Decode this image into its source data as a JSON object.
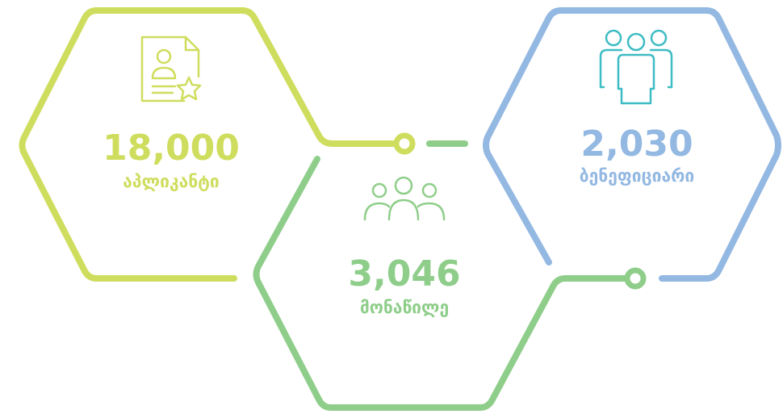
{
  "items": [
    {
      "value": "18,000",
      "label": "აპლიკანტი"
    },
    {
      "value": "3,046",
      "label": "მონაწილე"
    },
    {
      "value": "2,030",
      "label": "ბენეფიციარი"
    }
  ]
}
